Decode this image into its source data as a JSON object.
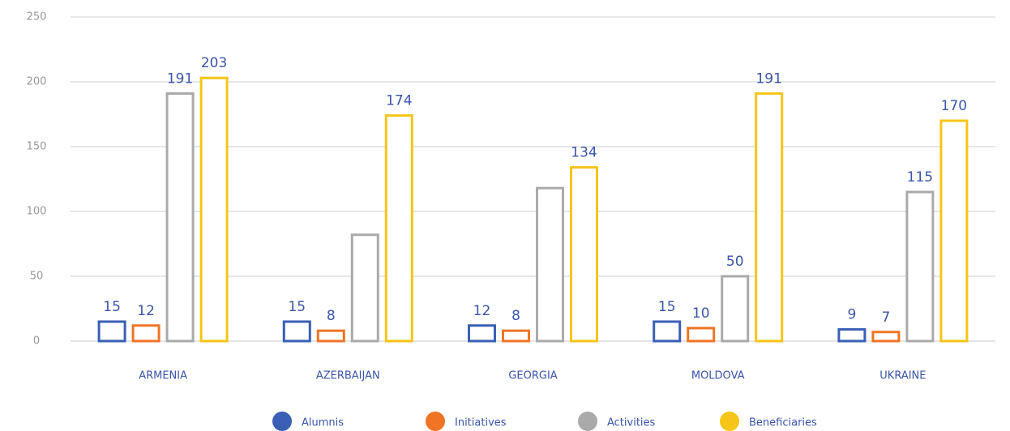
{
  "chart_data": {
    "type": "bar",
    "categories": [
      "ARMENIA",
      "AZERBAIJAN",
      "GEORGIA",
      "MOLDOVA",
      "UKRAINE"
    ],
    "series": [
      {
        "name": "Alumnis",
        "color": "#3a5fb5",
        "values": [
          15,
          15,
          12,
          15,
          9
        ],
        "value_labels": [
          "15",
          "15",
          "12",
          "15",
          "9"
        ]
      },
      {
        "name": "Initiatives",
        "color": "#f07424",
        "values": [
          12,
          8,
          8,
          10,
          7
        ],
        "value_labels": [
          "12",
          "8",
          "8",
          "10",
          "7"
        ]
      },
      {
        "name": "Activities",
        "color": "#aaaaaa",
        "values": [
          191,
          82,
          118,
          50,
          115
        ],
        "value_labels": [
          "191",
          null,
          null,
          "50",
          "115"
        ]
      },
      {
        "name": "Beneficiaries",
        "color": "#f5c518",
        "values": [
          203,
          174,
          134,
          191,
          170
        ],
        "value_labels": [
          "203",
          "174",
          "134",
          "191",
          "170"
        ]
      }
    ],
    "ylim": [
      0,
      250
    ],
    "yticks": [
      0,
      50,
      100,
      150,
      200,
      250
    ],
    "grid": true,
    "legend": "bottom"
  }
}
